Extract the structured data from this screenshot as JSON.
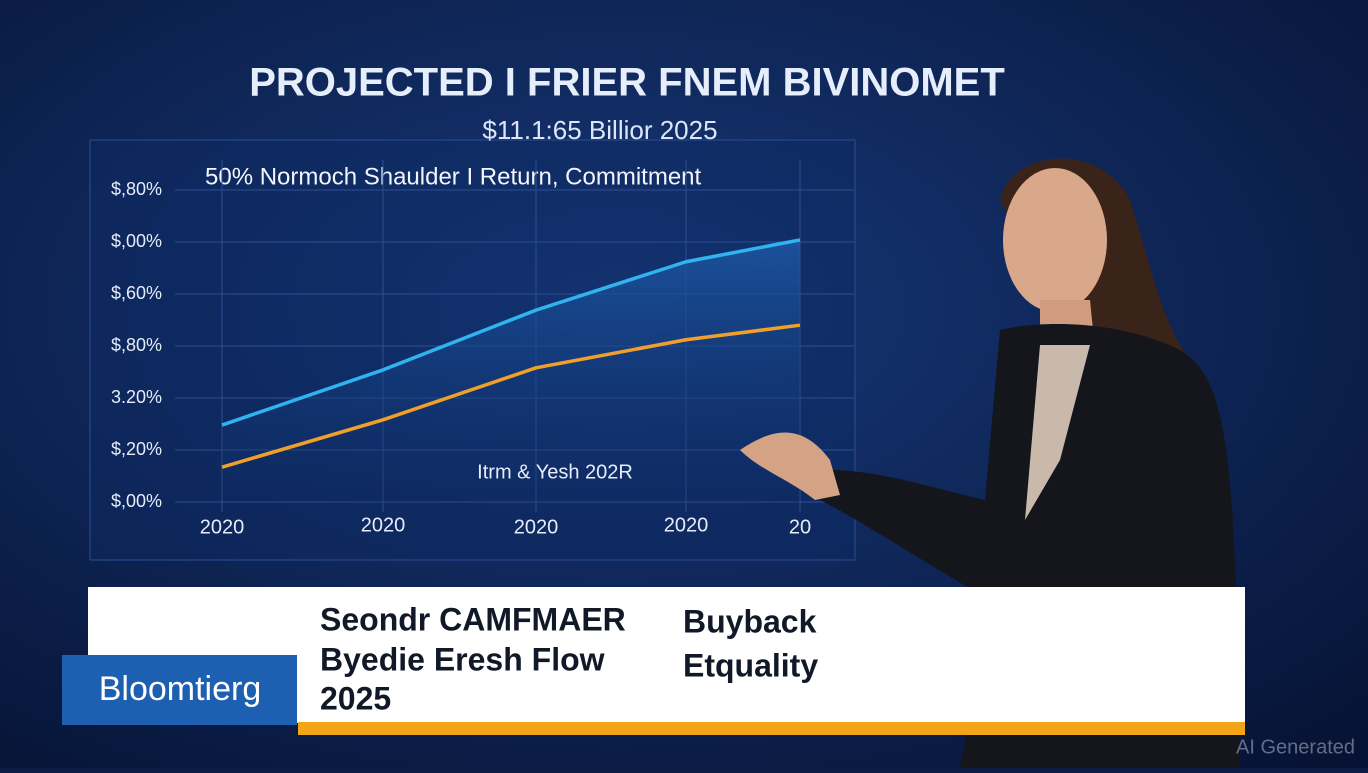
{
  "chart_data": {
    "type": "line",
    "title": "PROJECTED I FRIER FNEM BIVINOMET",
    "subtitle": "$11.1:65 Billior 2025",
    "annotation": "50% Normoch Shaulder  I Return, Commitment",
    "inner_annotation": "Itrm & Yesh 202R",
    "categories": [
      "2020",
      "2020",
      "2020",
      "2020",
      "20"
    ],
    "series": [
      {
        "color": "#2fb4f0",
        "values": [
          1.48,
          2.54,
          3.69,
          4.62,
          5.04
        ]
      },
      {
        "color": "#f0a02a",
        "values": [
          0.67,
          1.58,
          2.58,
          3.12,
          3.4
        ]
      }
    ],
    "ylim": [
      0,
      6
    ],
    "yticks": [
      {
        "value": 0,
        "label": "$,00%"
      },
      {
        "value": 1,
        "label": "$,20%"
      },
      {
        "value": 2,
        "label": "3.20%"
      },
      {
        "value": 3,
        "label": "$,80%"
      },
      {
        "value": 4,
        "label": "$,60%"
      },
      {
        "value": 5,
        "label": "$,00%"
      },
      {
        "value": 6,
        "label": "$,80%"
      }
    ],
    "grid": true
  },
  "banner": {
    "headline": [
      "Seondr CAMFMAER",
      "Byedie Eresh Flow",
      "2025"
    ],
    "side": [
      "Buyback",
      "Etquality"
    ]
  },
  "logo": "Bloomtierg",
  "watermark": "AI Generated"
}
